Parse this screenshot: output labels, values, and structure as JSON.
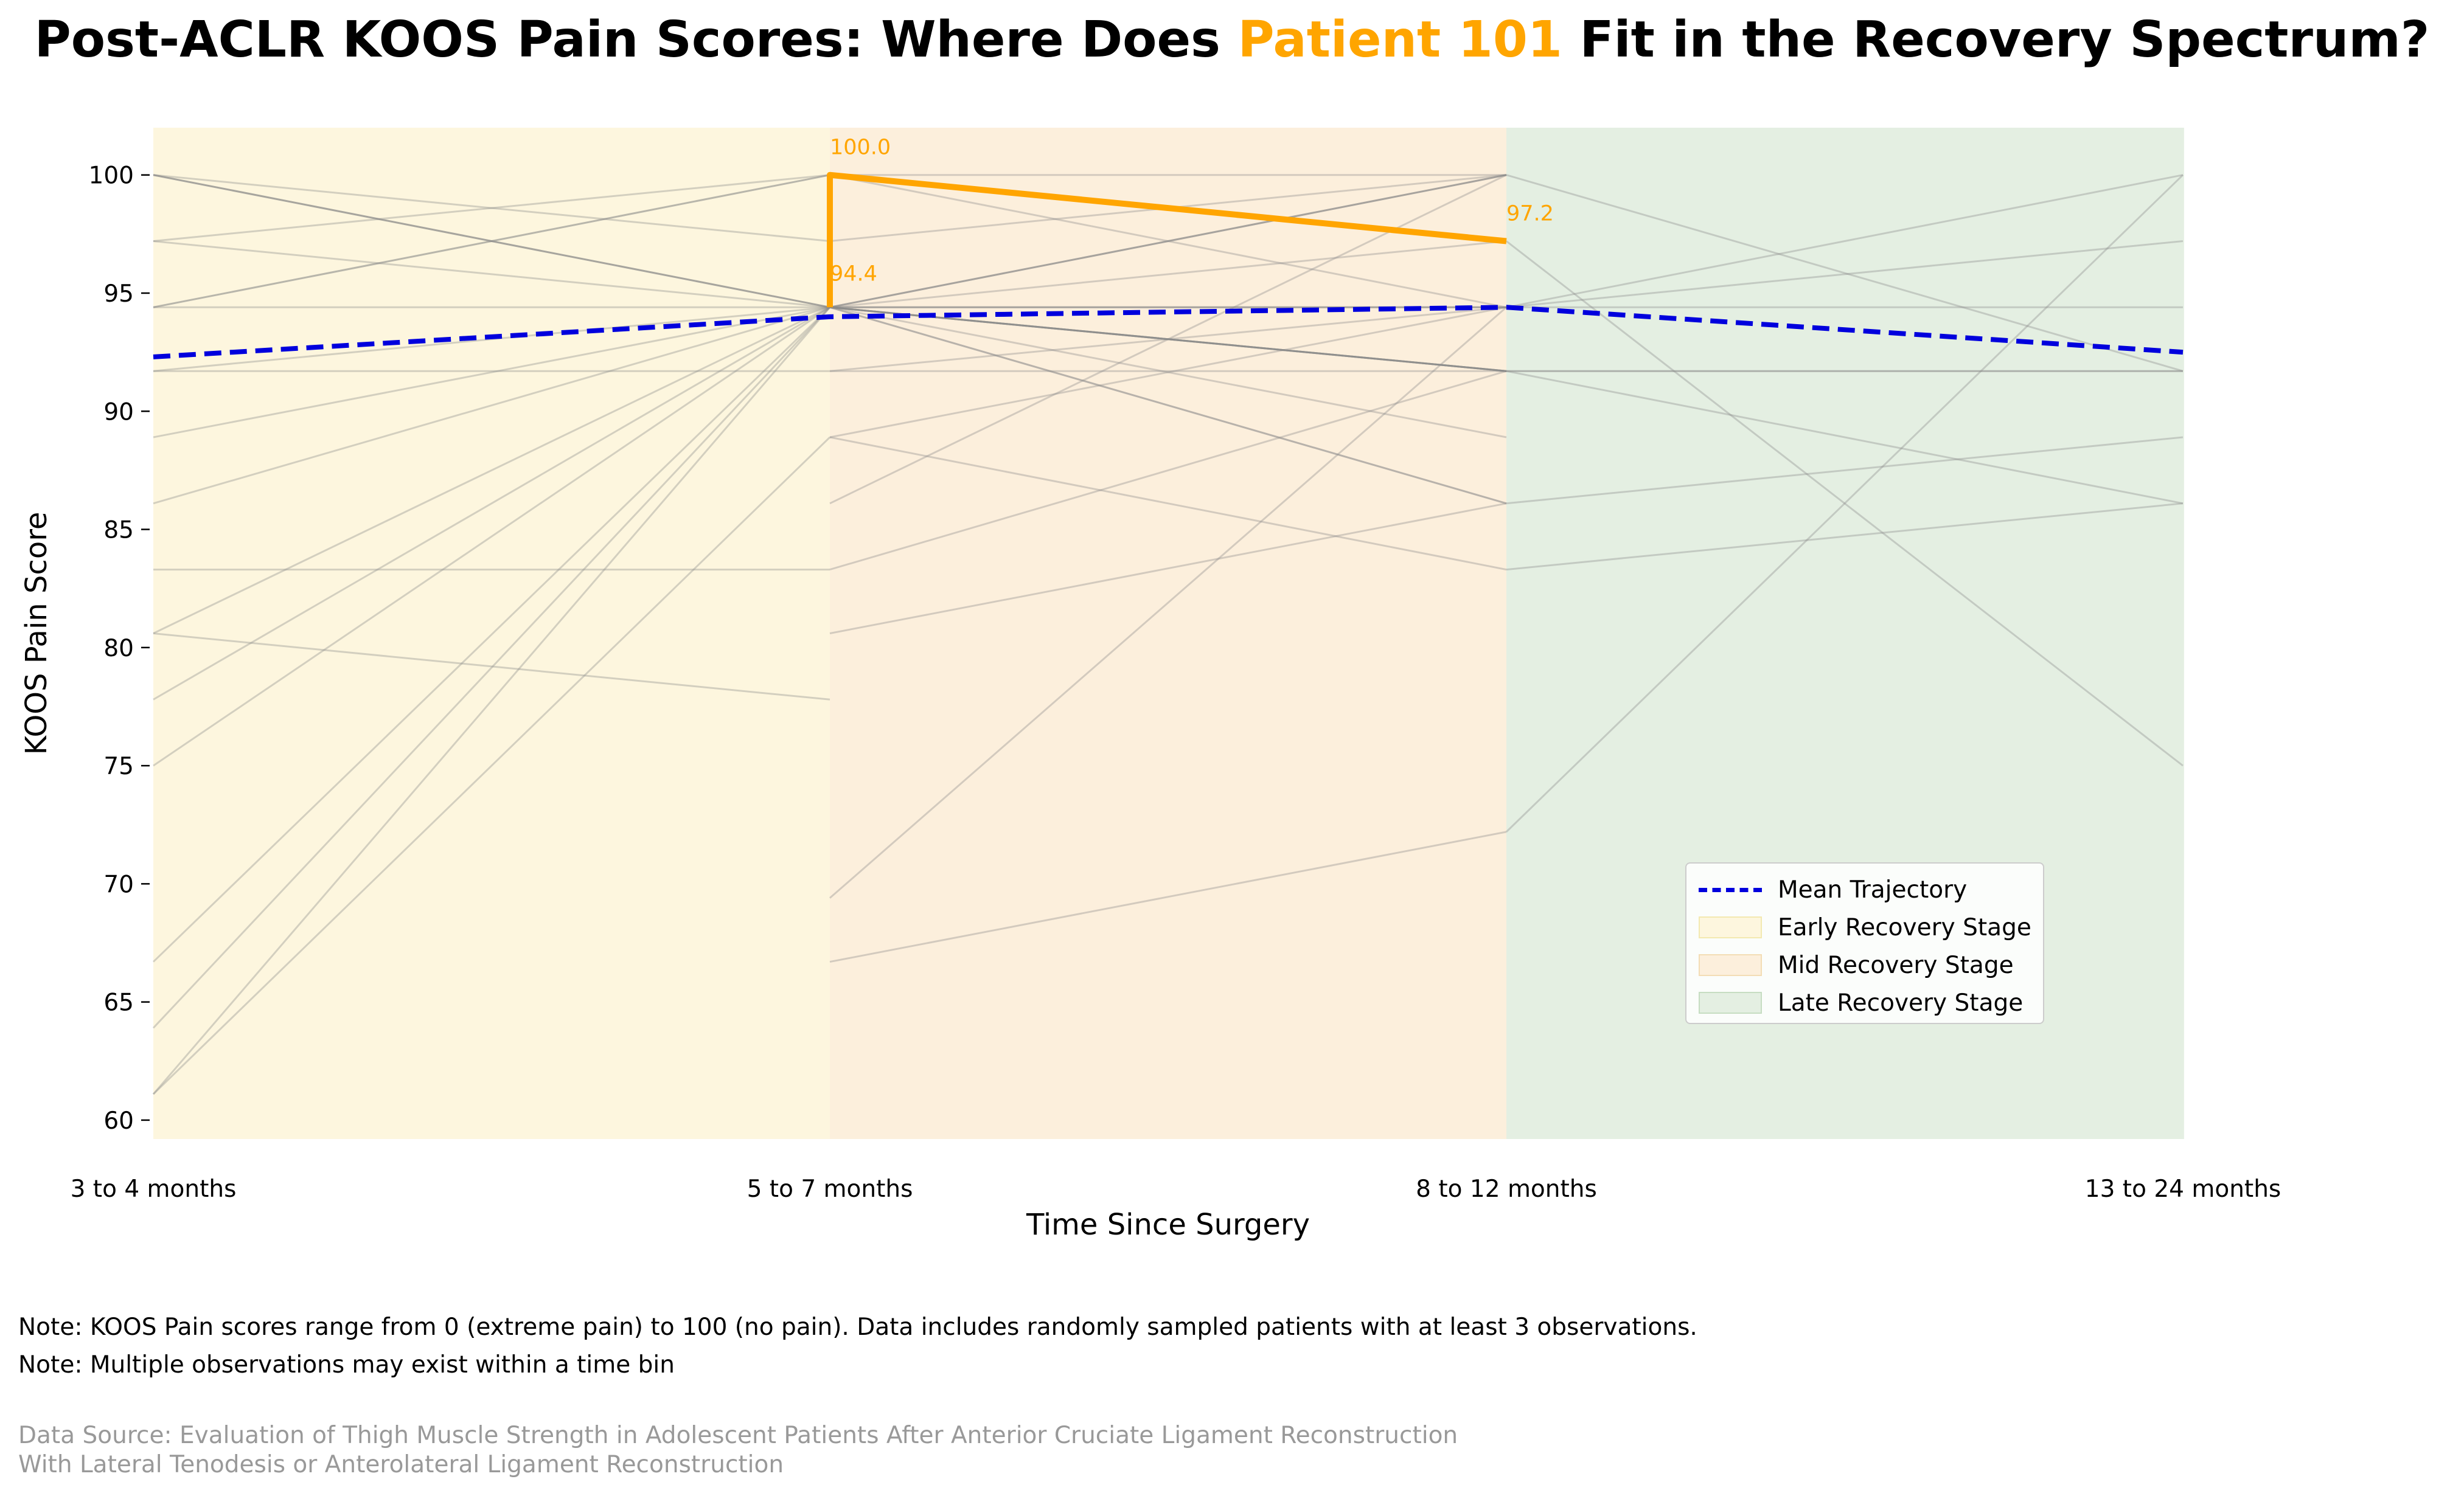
{
  "title": {
    "prefix": "Post-ACLR KOOS Pain Scores: Where Does ",
    "highlight": "Patient 101",
    "suffix": " Fit in the Recovery Spectrum?"
  },
  "colors": {
    "highlight": "#FFA500",
    "mean": "#0000DD",
    "early": "#FDF6DE",
    "mid": "#FCEFDC",
    "late": "#E4EFE2",
    "background_lines": "#888888"
  },
  "chart_data": {
    "type": "line",
    "xlabel": "Time Since Surgery",
    "ylabel": "KOOS Pain Score",
    "categories": [
      "3 to 4 months",
      "5 to 7 months",
      "8 to 12 months",
      "13 to 24 months"
    ],
    "ylim": [
      59.2,
      102
    ],
    "yticks": [
      60,
      65,
      70,
      75,
      80,
      85,
      90,
      95,
      100
    ],
    "grid": false,
    "legend_position": "lower-right",
    "stages": [
      {
        "name": "Early Recovery Stage",
        "from": 0,
        "to": 1
      },
      {
        "name": "Mid Recovery Stage",
        "from": 1,
        "to": 2
      },
      {
        "name": "Late Recovery Stage",
        "from": 2,
        "to": 3
      }
    ],
    "mean_series": {
      "name": "Mean Trajectory",
      "values": [
        92.3,
        94.0,
        94.4,
        92.5
      ]
    },
    "highlight_series": {
      "points": [
        [
          1,
          94.4
        ],
        [
          1,
          100.0
        ],
        [
          2,
          97.2
        ]
      ],
      "labels": [
        "94.4",
        "100.0",
        "97.2"
      ]
    },
    "background_series": [
      [
        100,
        94.4,
        100
      ],
      [
        100,
        94.4,
        91.7
      ],
      [
        94.4,
        100,
        97.2
      ],
      [
        94.4,
        94.4,
        94.4
      ],
      [
        91.7,
        94.4,
        86.1
      ],
      [
        88.9,
        94.4,
        100
      ],
      [
        86.1,
        94.4,
        91.7
      ],
      [
        77.8,
        94.4,
        100
      ],
      [
        75,
        94.4,
        94.4
      ],
      [
        66.7,
        94.4,
        86.1
      ],
      [
        63.9,
        94.4,
        91.7
      ],
      [
        61.1,
        94.4,
        88.9
      ],
      [
        97.2,
        100,
        94.4
      ],
      [
        97.2,
        94.4,
        91.7
      ],
      [
        83.3,
        83.3,
        91.7
      ],
      [
        80.6,
        77.8
      ],
      [
        94.4,
        100,
        100
      ],
      [
        100,
        97.2,
        100
      ],
      [
        91.7,
        91.7,
        94.4
      ],
      [
        61.1,
        88.9,
        94.4
      ],
      [
        80.6,
        94.4,
        97.2
      ],
      [
        100,
        94.4,
        91.7
      ],
      [
        null,
        94.4,
        94.4,
        94.4
      ],
      [
        null,
        91.7,
        91.7,
        91.7
      ],
      [
        null,
        null,
        91.7,
        86.1
      ],
      [
        null,
        null,
        94.4,
        100
      ],
      [
        null,
        null,
        97.2,
        75
      ],
      [
        null,
        80.6,
        86.1,
        88.9
      ],
      [
        null,
        86.1,
        100,
        91.7
      ],
      [
        null,
        69.4,
        94.4,
        97.2
      ],
      [
        null,
        66.7,
        72.2,
        100
      ],
      [
        null,
        88.9,
        83.3,
        86.1
      ],
      [
        null,
        94.4,
        91.7,
        91.7
      ]
    ]
  },
  "legend": {
    "mean": "Mean Trajectory",
    "early": "Early Recovery Stage",
    "mid": "Mid Recovery Stage",
    "late": "Late Recovery Stage"
  },
  "notes": [
    "Note: KOOS Pain scores range from 0 (extreme pain) to 100 (no pain). Data includes randomly sampled patients with at least 3 observations.",
    "Note: Multiple observations may exist within a time bin"
  ],
  "source": [
    "Data Source: Evaluation of Thigh Muscle Strength in Adolescent Patients After Anterior Cruciate Ligament Reconstruction",
    "With Lateral Tenodesis or Anterolateral Ligament Reconstruction"
  ]
}
